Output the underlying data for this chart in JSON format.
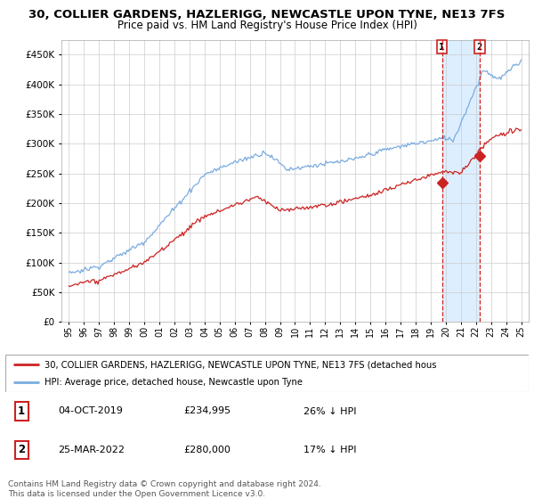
{
  "title": "30, COLLIER GARDENS, HAZLERIGG, NEWCASTLE UPON TYNE, NE13 7FS",
  "subtitle": "Price paid vs. HM Land Registry's House Price Index (HPI)",
  "ylim": [
    0,
    475000
  ],
  "yticks": [
    0,
    50000,
    100000,
    150000,
    200000,
    250000,
    300000,
    350000,
    400000,
    450000
  ],
  "ytick_labels": [
    "£0",
    "£50K",
    "£100K",
    "£150K",
    "£200K",
    "£250K",
    "£300K",
    "£350K",
    "£400K",
    "£450K"
  ],
  "hpi_color": "#7aace0",
  "price_color": "#cc2222",
  "marker_color": "#cc2222",
  "shade_color": "#ddeeff",
  "sale1_price": 234995,
  "sale1_x": 2019.75,
  "sale2_price": 280000,
  "sale2_x": 2022.25,
  "legend_line1": "30, COLLIER GARDENS, HAZLERIGG, NEWCASTLE UPON TYNE, NE13 7FS (detached hous",
  "legend_line2": "HPI: Average price, detached house, Newcastle upon Tyne",
  "footnote1": "Contains HM Land Registry data © Crown copyright and database right 2024.",
  "footnote2": "This data is licensed under the Open Government Licence v3.0.",
  "table_row1": [
    "1",
    "04-OCT-2019",
    "£234,995",
    "26% ↓ HPI"
  ],
  "table_row2": [
    "2",
    "25-MAR-2022",
    "£280,000",
    "17% ↓ HPI"
  ],
  "background_color": "#ffffff",
  "grid_color": "#cccccc"
}
